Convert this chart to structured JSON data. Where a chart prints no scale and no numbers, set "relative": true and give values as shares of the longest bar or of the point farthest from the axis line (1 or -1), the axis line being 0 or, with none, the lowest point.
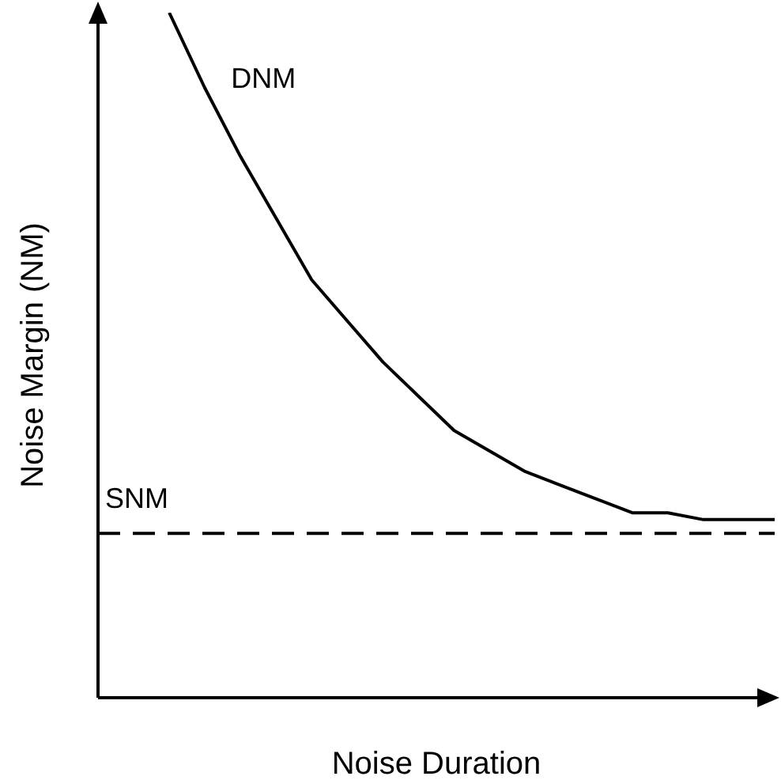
{
  "chart_data": {
    "type": "line",
    "relative": true,
    "xlabel": "Noise Duration",
    "ylabel": "Noise Margin (NM)",
    "legend": false,
    "grid": false,
    "marker": "none",
    "categories": [
      null,
      null,
      null,
      null,
      null,
      null,
      null,
      null,
      null,
      null,
      null,
      null,
      null,
      null,
      null,
      null,
      null,
      null,
      null,
      null
    ],
    "series": [
      {
        "name": "DNM",
        "color": "#000000",
        "line_style": "solid",
        "values": [
          null,
          null,
          1,
          0.89,
          0.79,
          0.7,
          0.61,
          0.55,
          0.49,
          0.44,
          0.39,
          0.36,
          0.33,
          0.31,
          0.29,
          0.27,
          0.27,
          0.26,
          0.26,
          0.26
        ]
      },
      {
        "name": "SNM",
        "color": "#000000",
        "line_style": "dashed",
        "values": [
          0.24,
          0.24,
          0.24,
          0.24,
          0.24,
          0.24,
          0.24,
          0.24,
          0.24,
          0.24,
          0.24,
          0.24,
          0.24,
          0.24,
          0.24,
          0.24,
          0.24,
          0.24,
          0.24,
          0.24
        ]
      }
    ]
  }
}
